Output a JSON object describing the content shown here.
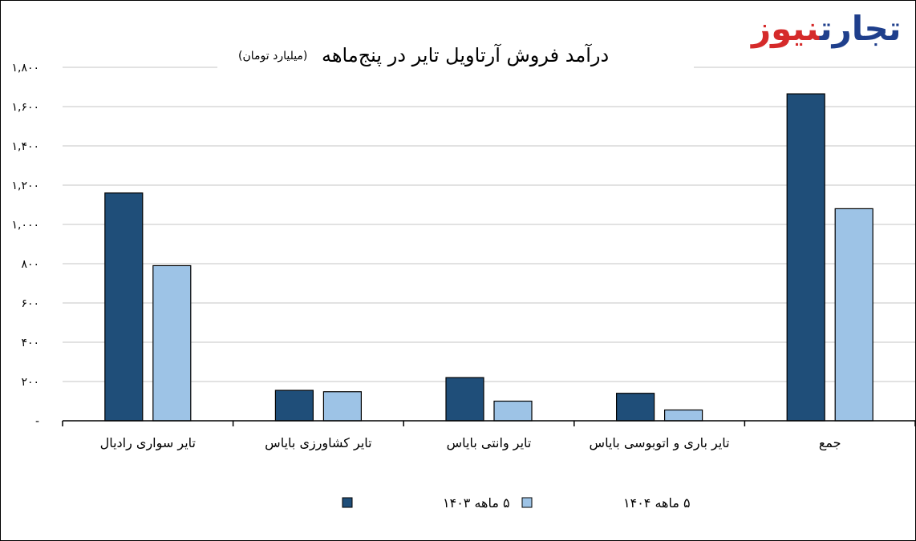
{
  "brand": {
    "part_a": "تجارت",
    "part_b": "نیوز",
    "color_a": "#1f3f8c",
    "color_b": "#d52a2a"
  },
  "chart_data": {
    "type": "bar",
    "title": "درآمد فروش آرتاویل تایر در پنج‌ماهه",
    "subtitle": "(میلیارد تومان)",
    "categories": [
      "تایر سواری رادیال",
      "تایر کشاورزی بایاس",
      "تایر وانتی بایاس",
      "تایر باری و اتوبوسی بایاس",
      "جمع"
    ],
    "series": [
      {
        "name": "۵ ماهه ۱۴۰۳",
        "color": "#1f4e79",
        "values": [
          1160,
          155,
          220,
          140,
          1665
        ]
      },
      {
        "name": "۵ ماهه ۱۴۰۴",
        "color": "#9dc3e6",
        "values": [
          790,
          148,
          100,
          55,
          1080
        ]
      }
    ],
    "ylim": [
      0,
      1800
    ],
    "yticks": [
      {
        "value": 0,
        "label": "-"
      },
      {
        "value": 200,
        "label": "۲۰۰"
      },
      {
        "value": 400,
        "label": "۴۰۰"
      },
      {
        "value": 600,
        "label": "۶۰۰"
      },
      {
        "value": 800,
        "label": "۸۰۰"
      },
      {
        "value": 1000,
        "label": "۱,۰۰۰"
      },
      {
        "value": 1200,
        "label": "۱,۲۰۰"
      },
      {
        "value": 1400,
        "label": "۱,۴۰۰"
      },
      {
        "value": 1600,
        "label": "۱,۶۰۰"
      },
      {
        "value": 1800,
        "label": "۱,۸۰۰"
      }
    ],
    "grid": true,
    "legend_position": "bottom"
  }
}
